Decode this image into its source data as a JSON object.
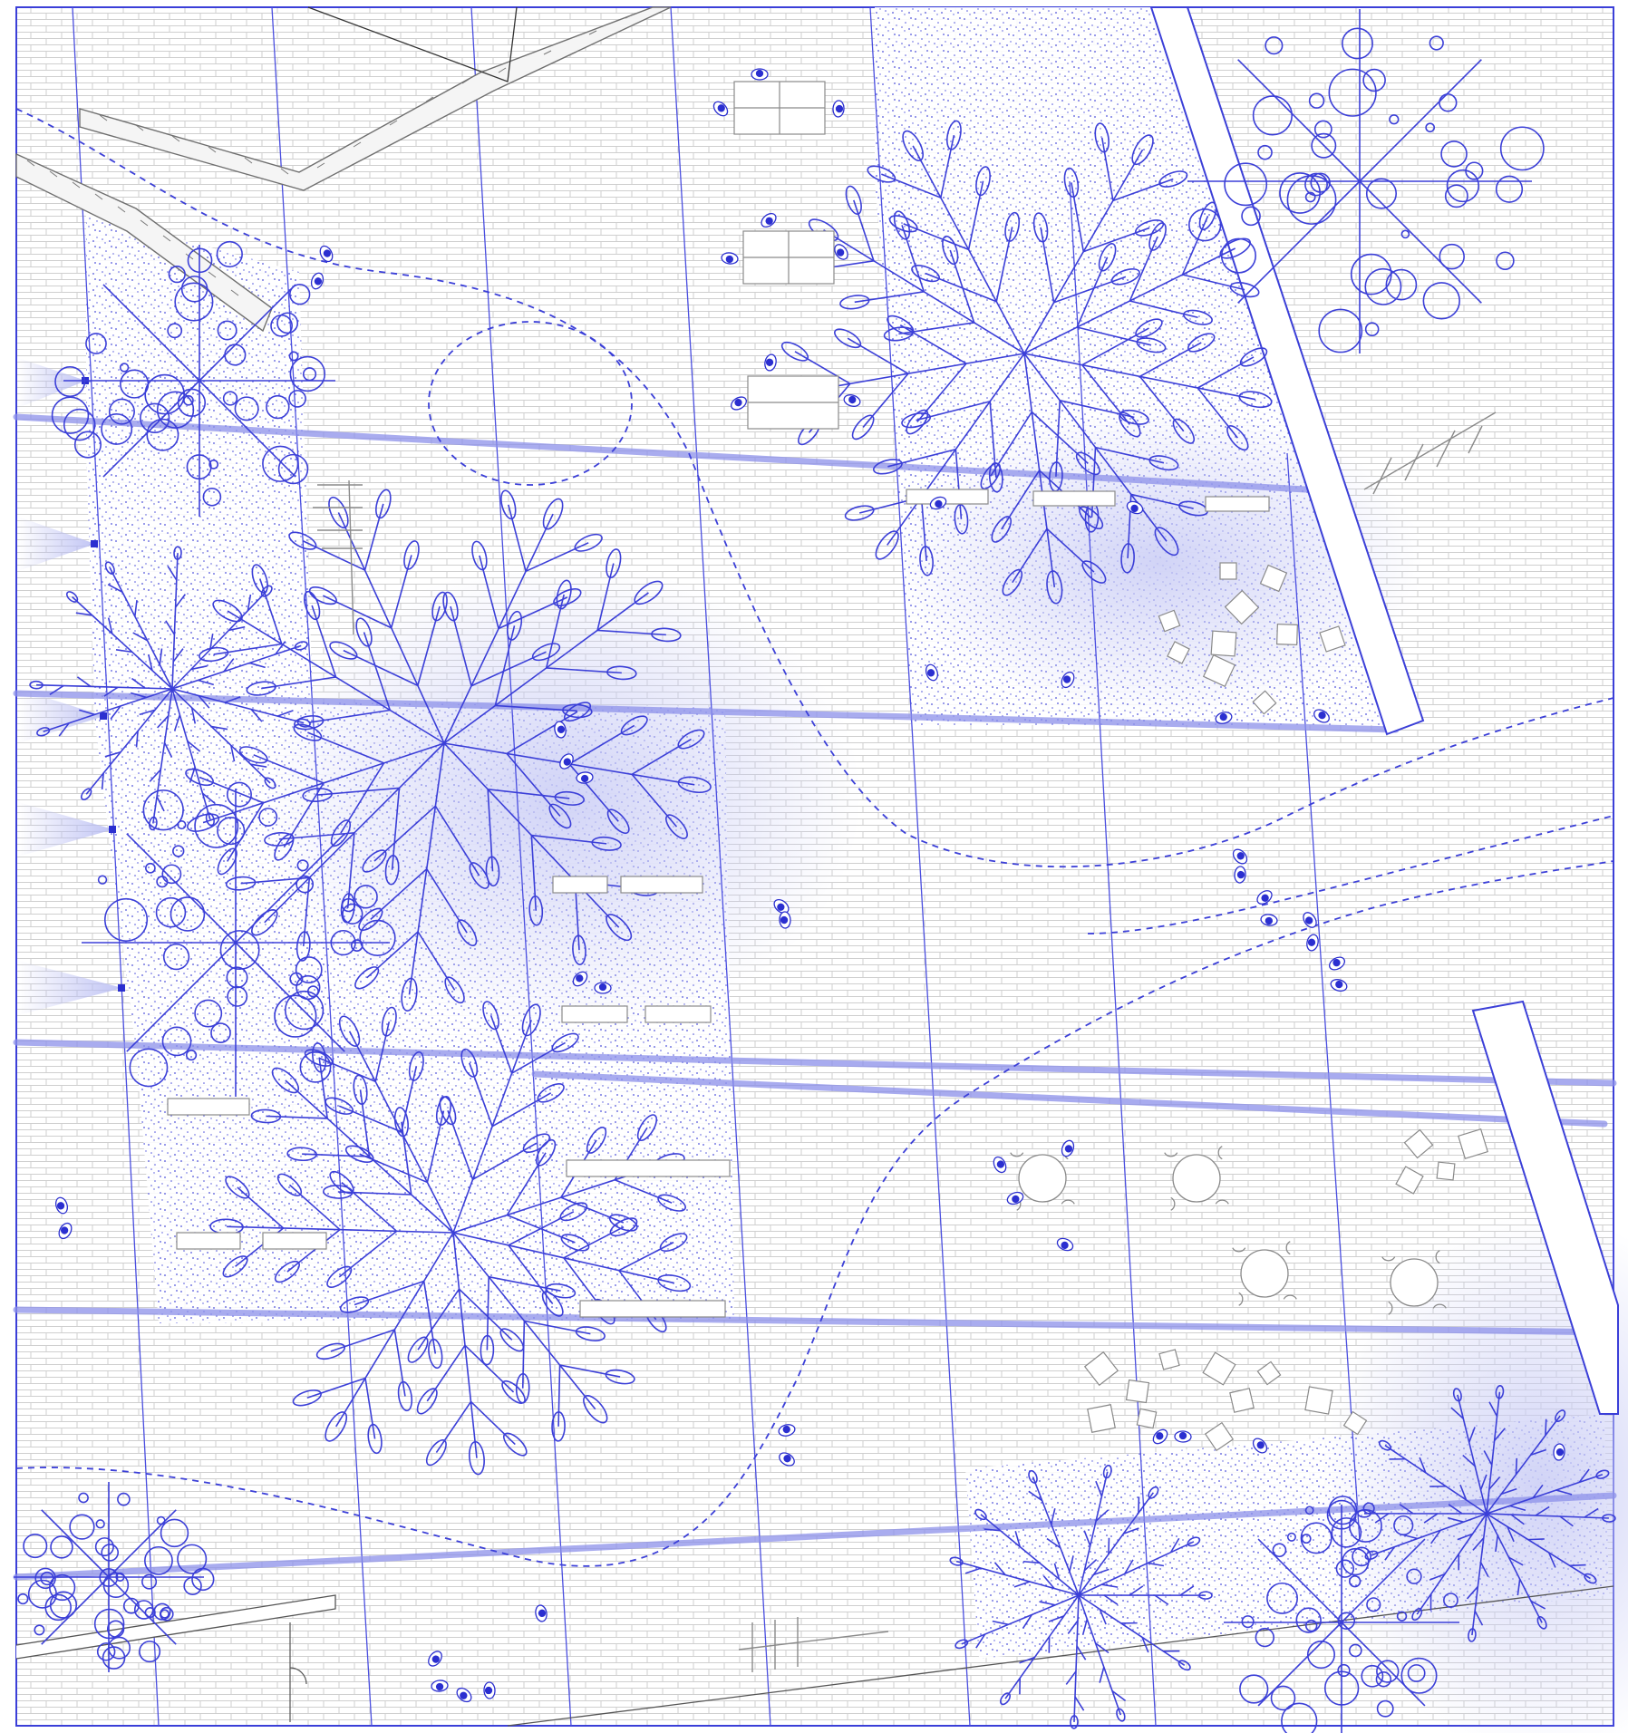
{
  "drawing": {
    "kind": "landscape site plan",
    "palette": {
      "ink": "#3b3fd8",
      "paving": "#c9c9c9",
      "shade": "#c9ccf5",
      "furniture": "#8a8a8a",
      "background": "#ffffff"
    },
    "elements": {
      "large_canopy_trees": 4,
      "small_canopy_trees": 4,
      "planting_beds_stippled": 3,
      "dashed_paths": 4,
      "drainage_channels": 6,
      "round_cafe_tables": 4,
      "picnic_tables": 3,
      "bike_racks": 2,
      "wall_lights": 5
    },
    "labels": []
  }
}
